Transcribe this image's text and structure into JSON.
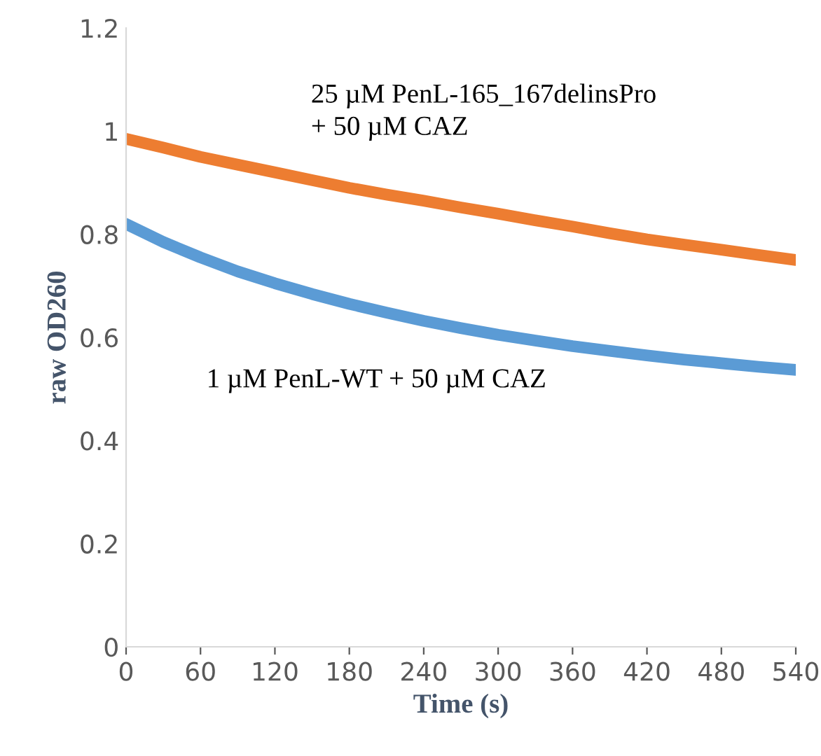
{
  "chart_data": {
    "type": "line",
    "xlabel": "Time (s)",
    "ylabel": "raw OD260",
    "xlim": [
      0,
      540
    ],
    "xticks": [
      0,
      60,
      120,
      180,
      240,
      300,
      360,
      420,
      480,
      540
    ],
    "ylim": [
      0,
      1.2
    ],
    "yticks": [
      0,
      0.2,
      0.4,
      0.6,
      0.8,
      1,
      1.2
    ],
    "grid": false,
    "legend": false,
    "x": [
      0,
      30,
      60,
      90,
      120,
      150,
      180,
      210,
      240,
      270,
      300,
      330,
      360,
      390,
      420,
      450,
      480,
      510,
      540
    ],
    "series": [
      {
        "color": "#ed7d31",
        "values": [
          0.985,
          0.968,
          0.95,
          0.935,
          0.92,
          0.905,
          0.89,
          0.877,
          0.865,
          0.852,
          0.84,
          0.827,
          0.815,
          0.802,
          0.79,
          0.78,
          0.77,
          0.76,
          0.75
        ]
      },
      {
        "color": "#5b9bd5",
        "values": [
          0.82,
          0.785,
          0.755,
          0.728,
          0.705,
          0.684,
          0.665,
          0.648,
          0.632,
          0.618,
          0.605,
          0.594,
          0.583,
          0.574,
          0.565,
          0.557,
          0.55,
          0.543,
          0.537
        ]
      }
    ],
    "annotations": [
      "25 µM PenL-165_167delinsPro\n+ 50 µM CAZ",
      "1 µM PenL-WT + 50 µM CAZ"
    ]
  }
}
